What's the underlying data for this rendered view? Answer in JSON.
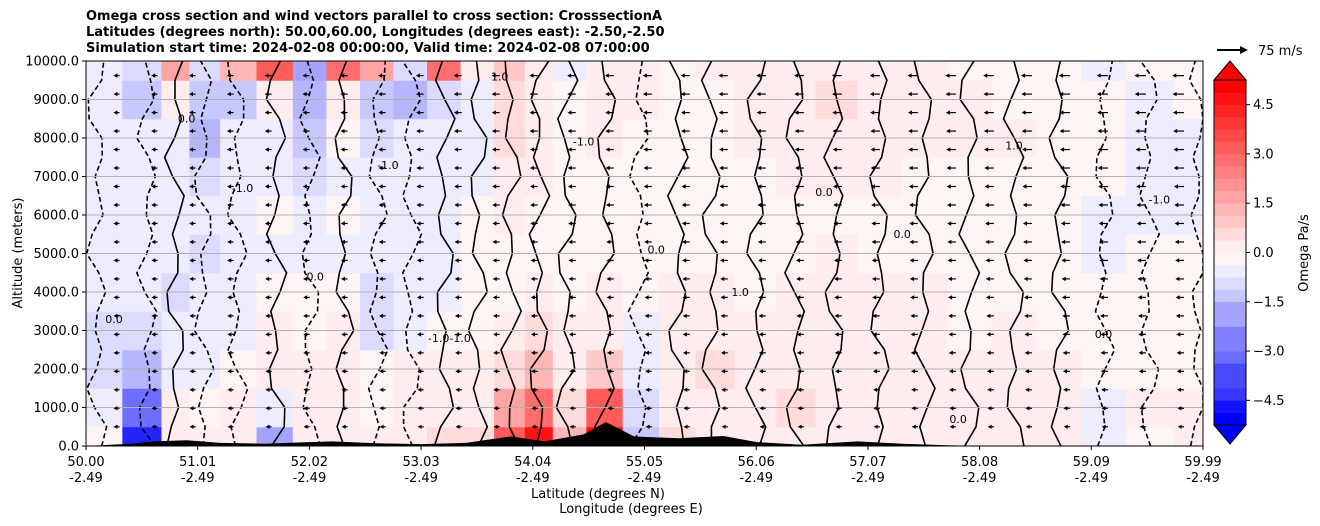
{
  "chart_data": {
    "type": "heatmap",
    "title_lines": [
      "Omega cross section and wind vectors parallel to cross section: CrosssectionA",
      "Latitudes (degrees north): 50.00,60.00, Longitudes (degrees east): -2.50,-2.50",
      "Simulation start time: 2024-02-08 00:00:00, Valid time: 2024-02-08 07:00:00"
    ],
    "ylabel": "Altitude (meters)",
    "xlabel_lines": [
      "Latitude (degrees N)",
      "Longitude (degrees E)"
    ],
    "ylim": [
      0,
      10000
    ],
    "y_ticks": [
      "0.0",
      "1000.0",
      "2000.0",
      "3000.0",
      "4000.0",
      "5000.0",
      "6000.0",
      "7000.0",
      "8000.0",
      "9000.0",
      "10000.0"
    ],
    "x_ticks": [
      {
        "lat": "50.00",
        "lon": "-2.49"
      },
      {
        "lat": "51.01",
        "lon": "-2.49"
      },
      {
        "lat": "52.02",
        "lon": "-2.49"
      },
      {
        "lat": "53.03",
        "lon": "-2.49"
      },
      {
        "lat": "54.04",
        "lon": "-2.49"
      },
      {
        "lat": "55.05",
        "lon": "-2.49"
      },
      {
        "lat": "56.06",
        "lon": "-2.49"
      },
      {
        "lat": "57.07",
        "lon": "-2.49"
      },
      {
        "lat": "58.08",
        "lon": "-2.49"
      },
      {
        "lat": "59.09",
        "lon": "-2.49"
      },
      {
        "lat": "59.99",
        "lon": "-2.49"
      }
    ],
    "colorbar": {
      "label": "Omega Pa/s",
      "range": [
        -5.25,
        5.25
      ],
      "ticks": [
        "−4.5",
        "−3.0",
        "−1.5",
        "0.0",
        "1.5",
        "3.0",
        "4.5"
      ],
      "tick_values": [
        -4.5,
        -3.0,
        -1.5,
        0.0,
        1.5,
        3.0,
        4.5
      ],
      "extend": "both",
      "colormap": "bwr"
    },
    "quiver_key": "75 m/s",
    "grid": true,
    "contour_labels": [
      "0.0",
      "-1.0",
      "1.0",
      "-1.0-1.0"
    ],
    "columns": [
      {
        "lat": 50.1,
        "omega": [
          0,
          -0.4,
          -0.6,
          -0.6,
          -0.5,
          -0.4,
          -0.3,
          -0.2,
          -0.3,
          -0.4,
          -0.3
        ]
      },
      {
        "lat": 50.55,
        "omega": [
          -4.5,
          -3.0,
          -1.5,
          -0.6,
          -0.5,
          -0.4,
          -0.3,
          -0.3,
          -0.5,
          -1.0,
          -0.6
        ]
      },
      {
        "lat": 50.8,
        "omega": [
          0.3,
          0.2,
          -0.2,
          -0.4,
          -0.6,
          -0.4,
          -0.2,
          -0.2,
          -0.2,
          0.5,
          2.0
        ]
      },
      {
        "lat": 51.05,
        "omega": [
          0.3,
          0.1,
          -0.2,
          -0.4,
          -0.5,
          -0.6,
          -0.5,
          -0.6,
          -1.5,
          -1.0,
          -0.6
        ]
      },
      {
        "lat": 51.35,
        "omega": [
          0.5,
          0.4,
          -0.1,
          -0.3,
          -0.2,
          -0.3,
          -0.3,
          -0.5,
          -0.5,
          -1.0,
          1.5
        ]
      },
      {
        "lat": 51.7,
        "omega": [
          -2.0,
          -0.5,
          0.3,
          0.2,
          -0.1,
          -0.2,
          -0.1,
          -0.3,
          -0.3,
          0.5,
          3.5
        ]
      },
      {
        "lat": 52.0,
        "omega": [
          0.4,
          0.3,
          0.3,
          0.1,
          -0.1,
          -0.2,
          -0.2,
          -0.6,
          -1.0,
          -1.5,
          -2.0
        ]
      },
      {
        "lat": 52.3,
        "omega": [
          0.3,
          0.4,
          0.3,
          0.2,
          -0.1,
          -0.2,
          -0.1,
          -0.2,
          -0.1,
          0.5,
          3.0
        ]
      },
      {
        "lat": 52.6,
        "omega": [
          0.2,
          0.1,
          -0.1,
          -0.6,
          -0.9,
          -0.3,
          -0.2,
          -0.3,
          -0.6,
          -1.0,
          2.0
        ]
      },
      {
        "lat": 52.9,
        "omega": [
          0.4,
          0.3,
          0.2,
          -0.2,
          -0.5,
          -0.3,
          -0.2,
          -0.3,
          -0.5,
          -1.5,
          -0.8
        ]
      },
      {
        "lat": 53.2,
        "omega": [
          0.6,
          0.4,
          0.2,
          -0.1,
          -0.3,
          -0.3,
          -0.2,
          -0.3,
          -0.4,
          -0.6,
          3.0
        ]
      },
      {
        "lat": 53.5,
        "omega": [
          0.8,
          0.5,
          0.3,
          0.1,
          -0.1,
          -0.1,
          -0.1,
          -0.2,
          -0.3,
          -0.2,
          0.3
        ]
      },
      {
        "lat": 53.8,
        "omega": [
          3.5,
          2.0,
          0.8,
          0.3,
          0.1,
          0.1,
          0.2,
          0.4,
          0.6,
          0.8,
          1.0
        ]
      },
      {
        "lat": 54.05,
        "omega": [
          4.8,
          3.0,
          1.5,
          0.6,
          0.2,
          0.1,
          0.1,
          0.2,
          0.3,
          0.4,
          0.3
        ]
      },
      {
        "lat": 54.3,
        "omega": [
          1.5,
          0.9,
          0.5,
          0.2,
          0.1,
          0.0,
          0.0,
          0.1,
          0.1,
          -0.1,
          -0.3
        ]
      },
      {
        "lat": 54.65,
        "omega": [
          5.0,
          3.2,
          1.2,
          0.4,
          0.2,
          0.1,
          0.1,
          0.1,
          0.2,
          0.3,
          0.2
        ]
      },
      {
        "lat": 54.95,
        "omega": [
          -1.0,
          -0.6,
          -0.3,
          -0.2,
          -0.1,
          0.0,
          0.0,
          0.1,
          0.1,
          0.2,
          0.2
        ]
      },
      {
        "lat": 55.3,
        "omega": [
          0.6,
          0.5,
          0.4,
          0.3,
          0.2,
          0.1,
          0.0,
          0.0,
          0.0,
          0.1,
          0.1
        ]
      },
      {
        "lat": 55.6,
        "omega": [
          0.4,
          0.5,
          0.6,
          0.4,
          0.2,
          0.0,
          -0.1,
          -0.1,
          0.0,
          0.1,
          0.2
        ]
      },
      {
        "lat": 56.0,
        "omega": [
          0.3,
          0.4,
          0.3,
          0.2,
          0.1,
          0.0,
          0.0,
          0.1,
          0.2,
          0.2,
          0.2
        ]
      },
      {
        "lat": 56.35,
        "omega": [
          0.5,
          0.6,
          0.4,
          0.3,
          0.2,
          0.1,
          0.1,
          0.2,
          0.3,
          0.3,
          0.3
        ]
      },
      {
        "lat": 56.7,
        "omega": [
          0.3,
          0.4,
          0.3,
          0.5,
          0.3,
          0.2,
          0.1,
          0.2,
          0.5,
          0.6,
          0.4
        ]
      },
      {
        "lat": 57.1,
        "omega": [
          0.4,
          0.3,
          0.2,
          0.3,
          0.2,
          0.1,
          0.1,
          0.2,
          0.4,
          0.5,
          0.3
        ]
      },
      {
        "lat": 57.5,
        "omega": [
          0.3,
          0.5,
          0.4,
          0.3,
          0.2,
          0.1,
          0.0,
          0.1,
          0.2,
          0.3,
          0.2
        ]
      },
      {
        "lat": 57.9,
        "omega": [
          0.2,
          0.3,
          0.2,
          0.1,
          0.0,
          -0.1,
          -0.1,
          0.0,
          0.2,
          0.2,
          0.1
        ]
      },
      {
        "lat": 58.3,
        "omega": [
          0.3,
          0.4,
          0.5,
          0.3,
          0.1,
          0.0,
          0.0,
          0.1,
          0.2,
          0.1,
          0.0
        ]
      },
      {
        "lat": 58.7,
        "omega": [
          0.2,
          0.3,
          0.2,
          0.1,
          0.0,
          -0.1,
          0.0,
          0.1,
          0.1,
          0.0,
          -0.1
        ]
      },
      {
        "lat": 59.1,
        "omega": [
          -0.3,
          -0.2,
          -0.1,
          0.0,
          -0.1,
          -0.2,
          -0.2,
          -0.1,
          0.0,
          -0.1,
          -0.2
        ]
      },
      {
        "lat": 59.5,
        "omega": [
          0.1,
          0.2,
          0.1,
          0.0,
          -0.1,
          -0.1,
          -0.2,
          -0.3,
          -0.3,
          -0.2,
          -0.1
        ]
      },
      {
        "lat": 59.95,
        "omega": [
          0.2,
          0.2,
          0.1,
          0.0,
          -0.1,
          -0.1,
          -0.2,
          -0.2,
          -0.2,
          -0.1,
          0.0
        ]
      }
    ],
    "terrain": [
      {
        "lat": 50.0,
        "alt": 0
      },
      {
        "lat": 50.4,
        "alt": 60
      },
      {
        "lat": 50.6,
        "alt": 120
      },
      {
        "lat": 50.9,
        "alt": 150
      },
      {
        "lat": 51.2,
        "alt": 80
      },
      {
        "lat": 51.6,
        "alt": 60
      },
      {
        "lat": 51.9,
        "alt": 90
      },
      {
        "lat": 52.2,
        "alt": 120
      },
      {
        "lat": 52.6,
        "alt": 70
      },
      {
        "lat": 53.0,
        "alt": 50
      },
      {
        "lat": 53.4,
        "alt": 80
      },
      {
        "lat": 53.8,
        "alt": 250
      },
      {
        "lat": 54.1,
        "alt": 120
      },
      {
        "lat": 54.45,
        "alt": 300
      },
      {
        "lat": 54.65,
        "alt": 620
      },
      {
        "lat": 54.9,
        "alt": 250
      },
      {
        "lat": 55.3,
        "alt": 200
      },
      {
        "lat": 55.7,
        "alt": 260
      },
      {
        "lat": 56.0,
        "alt": 100
      },
      {
        "lat": 56.4,
        "alt": 30
      },
      {
        "lat": 56.9,
        "alt": 120
      },
      {
        "lat": 57.3,
        "alt": 60
      },
      {
        "lat": 57.7,
        "alt": 20
      },
      {
        "lat": 58.0,
        "alt": 0
      },
      {
        "lat": 59.99,
        "alt": 0
      }
    ]
  }
}
